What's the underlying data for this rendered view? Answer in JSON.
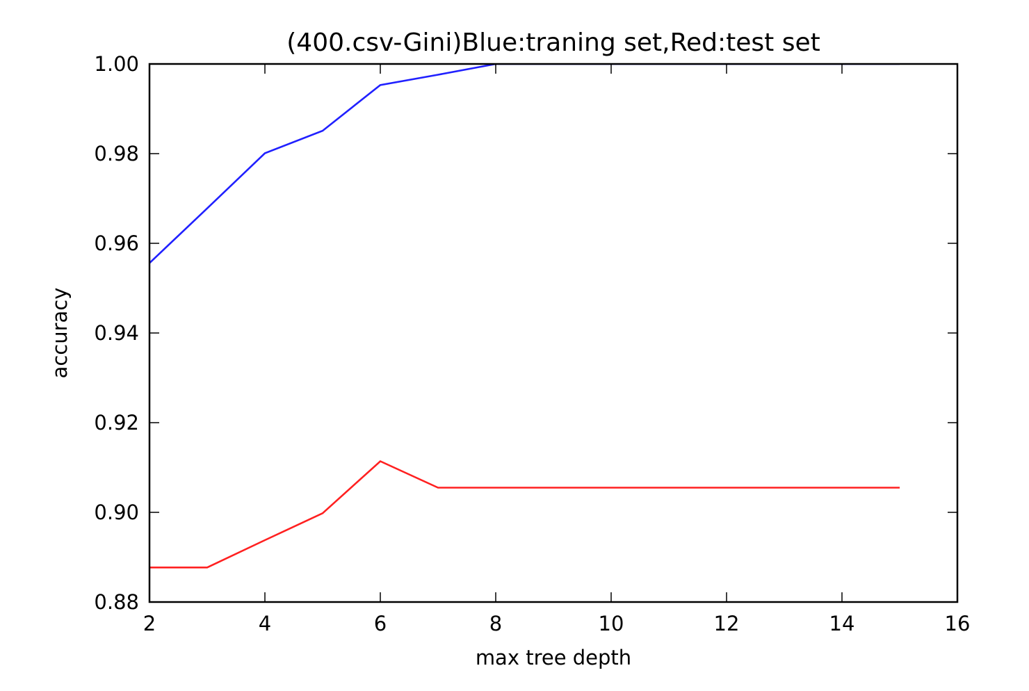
{
  "chart_data": {
    "type": "line",
    "title": "(400.csv-Gini)Blue:traning set,Red:test set",
    "xlabel": "max tree depth",
    "ylabel": "accuracy",
    "xlim": [
      2,
      16
    ],
    "ylim": [
      0.88,
      1.0
    ],
    "xticks": [
      2,
      4,
      6,
      8,
      10,
      12,
      14,
      16
    ],
    "xtick_labels": [
      "2",
      "4",
      "6",
      "8",
      "10",
      "12",
      "14",
      "16"
    ],
    "yticks": [
      0.88,
      0.9,
      0.92,
      0.94,
      0.96,
      0.98,
      1.0
    ],
    "ytick_labels": [
      "0.88",
      "0.90",
      "0.92",
      "0.94",
      "0.96",
      "0.98",
      "1.00"
    ],
    "grid": false,
    "x": [
      2,
      3,
      4,
      5,
      6,
      7,
      8,
      9,
      10,
      11,
      12,
      13,
      14,
      15
    ],
    "series": [
      {
        "color": "#2020ff",
        "values": [
          0.9556,
          0.9678,
          0.9801,
          0.9851,
          0.9953,
          0.9976,
          1.0,
          1.0,
          1.0,
          1.0,
          1.0,
          1.0,
          1.0,
          1.0
        ]
      },
      {
        "color": "#ff2020",
        "values": [
          0.8877,
          0.8877,
          0.8938,
          0.8998,
          0.9114,
          0.9055,
          0.9055,
          0.9055,
          0.9055,
          0.9055,
          0.9055,
          0.9055,
          0.9055,
          0.9055
        ]
      }
    ]
  }
}
